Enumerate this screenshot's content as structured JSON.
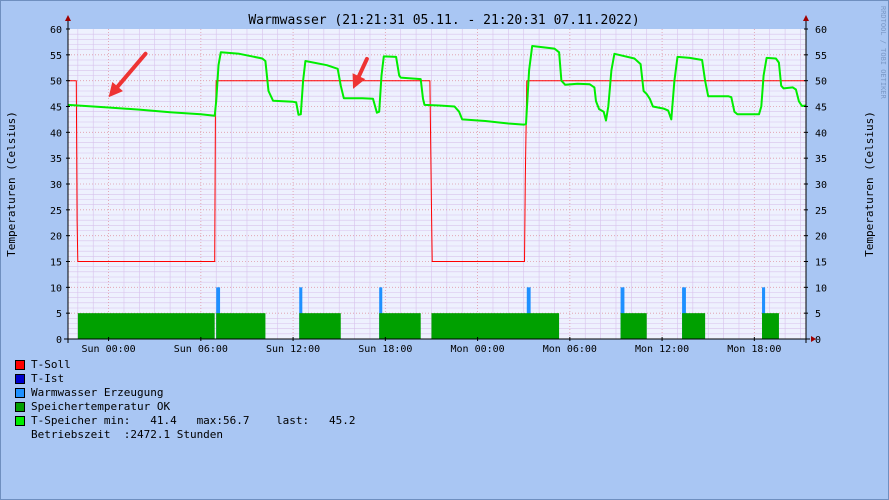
{
  "chart_data": {
    "type": "area",
    "title": "Warmwasser (21:21:31 05.11. - 21:20:31 07.11.2022)",
    "ylabel_left": "Temperaturen (Celsius)",
    "ylabel_right": "Temperaturen (Celsius)",
    "watermark": "RRDTOOL / TOBI OETIKER",
    "x_unit": "hours since Sun 00:00",
    "xlim": [
      -2.64,
      45.36
    ],
    "ylim": [
      0,
      60
    ],
    "y_ticks": [
      0,
      5,
      10,
      15,
      20,
      25,
      30,
      35,
      40,
      45,
      50,
      55,
      60
    ],
    "x_ticks": [
      {
        "label": "Sun 00:00",
        "x": 0
      },
      {
        "label": "Sun 06:00",
        "x": 6
      },
      {
        "label": "Sun 12:00",
        "x": 12
      },
      {
        "label": "Sun 18:00",
        "x": 18
      },
      {
        "label": "Mon 00:00",
        "x": 24
      },
      {
        "label": "Mon 06:00",
        "x": 30
      },
      {
        "label": "Mon 12:00",
        "x": 36
      },
      {
        "label": "Mon 18:00",
        "x": 42
      }
    ],
    "grid": true,
    "series": [
      {
        "name": "T-Soll",
        "color": "#ff0000",
        "kind": "line",
        "points": [
          [
            -2.64,
            50
          ],
          [
            -2.1,
            50
          ],
          [
            -2.05,
            23
          ],
          [
            -2.0,
            15
          ],
          [
            6.9,
            15
          ],
          [
            6.95,
            43
          ],
          [
            7.0,
            50
          ],
          [
            20.9,
            50
          ],
          [
            21.0,
            25
          ],
          [
            21.05,
            15
          ],
          [
            27.05,
            15
          ],
          [
            27.1,
            31
          ],
          [
            27.2,
            50
          ],
          [
            45.36,
            50
          ]
        ]
      },
      {
        "name": "T-Ist",
        "color": "#0000cc",
        "kind": "line",
        "points": []
      },
      {
        "name": "Warmwasser Erzeugung",
        "color": "#1e90ff",
        "kind": "area",
        "intervals": [
          [
            7.0,
            7.25,
            10
          ],
          [
            12.4,
            12.6,
            10
          ],
          [
            17.6,
            17.8,
            10
          ],
          [
            27.2,
            27.45,
            10
          ],
          [
            33.3,
            33.55,
            10
          ],
          [
            37.3,
            37.55,
            10
          ],
          [
            42.5,
            42.7,
            10
          ]
        ]
      },
      {
        "name": "Speichertemperatur OK",
        "color": "#00a000",
        "kind": "area",
        "intervals": [
          [
            -2.0,
            6.9,
            5
          ],
          [
            7.0,
            10.2,
            5
          ],
          [
            12.4,
            15.1,
            5
          ],
          [
            17.6,
            20.3,
            5
          ],
          [
            21.0,
            29.3,
            5
          ],
          [
            33.3,
            35.0,
            5
          ],
          [
            37.3,
            38.8,
            5
          ],
          [
            42.5,
            43.6,
            5
          ]
        ]
      },
      {
        "name": "T-Speicher",
        "color": "#00ee00",
        "kind": "line",
        "points": [
          [
            -2.64,
            45.3
          ],
          [
            -1.5,
            45.1
          ],
          [
            0,
            44.8
          ],
          [
            2,
            44.4
          ],
          [
            4,
            43.9
          ],
          [
            6,
            43.5
          ],
          [
            6.9,
            43.2
          ],
          [
            7.0,
            46
          ],
          [
            7.15,
            53
          ],
          [
            7.3,
            55.5
          ],
          [
            8.5,
            55.2
          ],
          [
            10.0,
            54.3
          ],
          [
            10.2,
            53.8
          ],
          [
            10.4,
            48
          ],
          [
            10.7,
            46.1
          ],
          [
            12.0,
            45.9
          ],
          [
            12.2,
            45.8
          ],
          [
            12.35,
            43.4
          ],
          [
            12.5,
            43.5
          ],
          [
            12.65,
            50
          ],
          [
            12.8,
            53.8
          ],
          [
            14.2,
            53
          ],
          [
            14.9,
            52.3
          ],
          [
            15.1,
            49
          ],
          [
            15.3,
            46.6
          ],
          [
            16.5,
            46.6
          ],
          [
            17.2,
            46.5
          ],
          [
            17.45,
            43.8
          ],
          [
            17.6,
            44
          ],
          [
            17.75,
            51
          ],
          [
            17.9,
            54.7
          ],
          [
            18.7,
            54.6
          ],
          [
            18.9,
            51
          ],
          [
            19.0,
            50.6
          ],
          [
            20.3,
            50.3
          ],
          [
            20.45,
            46.5
          ],
          [
            20.55,
            45.3
          ],
          [
            21.5,
            45.2
          ],
          [
            22.5,
            45
          ],
          [
            22.8,
            44
          ],
          [
            23.0,
            42.5
          ],
          [
            24.5,
            42.2
          ],
          [
            26.0,
            41.7
          ],
          [
            27.0,
            41.5
          ],
          [
            27.15,
            41.6
          ],
          [
            27.35,
            52
          ],
          [
            27.55,
            56.7
          ],
          [
            29.0,
            56.2
          ],
          [
            29.3,
            55.5
          ],
          [
            29.45,
            50
          ],
          [
            29.7,
            49.2
          ],
          [
            30.5,
            49.4
          ],
          [
            31.3,
            49.3
          ],
          [
            31.6,
            48.7
          ],
          [
            31.7,
            46
          ],
          [
            31.9,
            44.5
          ],
          [
            32.2,
            44
          ],
          [
            32.35,
            42.3
          ],
          [
            32.5,
            45
          ],
          [
            32.7,
            52
          ],
          [
            32.9,
            55.2
          ],
          [
            34.2,
            54.3
          ],
          [
            34.6,
            53.2
          ],
          [
            34.8,
            48
          ],
          [
            35.0,
            47.4
          ],
          [
            35.2,
            46.5
          ],
          [
            35.4,
            45
          ],
          [
            36.1,
            44.6
          ],
          [
            36.4,
            44.2
          ],
          [
            36.6,
            42.5
          ],
          [
            36.8,
            50
          ],
          [
            37.0,
            54.6
          ],
          [
            37.8,
            54.4
          ],
          [
            38.6,
            54
          ],
          [
            38.8,
            50
          ],
          [
            39.0,
            47
          ],
          [
            40.3,
            47
          ],
          [
            40.5,
            46.8
          ],
          [
            40.7,
            44
          ],
          [
            40.9,
            43.5
          ],
          [
            42.3,
            43.5
          ],
          [
            42.45,
            45
          ],
          [
            42.6,
            51
          ],
          [
            42.8,
            54.4
          ],
          [
            43.4,
            54.3
          ],
          [
            43.6,
            53.5
          ],
          [
            43.75,
            49
          ],
          [
            43.9,
            48.5
          ],
          [
            44.5,
            48.7
          ],
          [
            44.7,
            48.3
          ],
          [
            44.9,
            46
          ],
          [
            45.1,
            45.1
          ],
          [
            45.36,
            45.2
          ]
        ]
      }
    ],
    "annotations": [
      {
        "type": "arrow",
        "color": "#ee3333",
        "from": [
          2.4,
          55.2
        ],
        "to": [
          0,
          46.8
        ]
      },
      {
        "type": "arrow",
        "color": "#ee3333",
        "from": [
          16.8,
          54.2
        ],
        "to": [
          15.9,
          48.4
        ]
      }
    ],
    "legend_entries": [
      {
        "label": "T-Soll",
        "color": "#ff0000"
      },
      {
        "label": "T-Ist",
        "color": "#0000cc"
      },
      {
        "label": "Warmwasser Erzeugung",
        "color": "#1e90ff"
      },
      {
        "label": "Speichertemperatur OK",
        "color": "#00a000"
      },
      {
        "label": "T-Speicher min:   41.4   max:56.7    last:   45.2",
        "color": "#00ee00"
      },
      {
        "label": "Betriebszeit  :2472.1 Stunden",
        "color": ""
      }
    ]
  }
}
